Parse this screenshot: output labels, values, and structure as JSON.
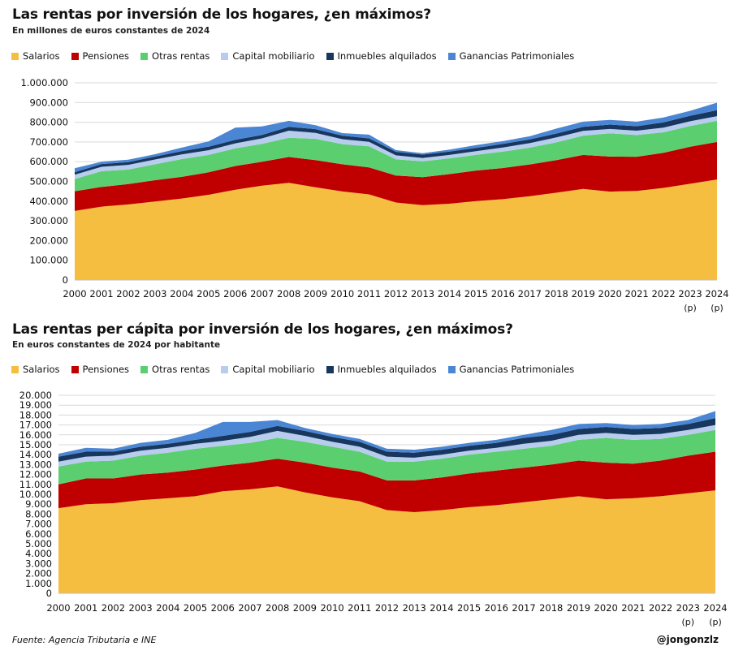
{
  "colors": {
    "Salarios": "#F5BE41",
    "Pensiones": "#C00000",
    "Otras rentas": "#5BCF70",
    "Capital mobiliario": "#B8CCEE",
    "Inmuebles alquilados": "#17375E",
    "Ganancias Patrimoniales": "#4A86D4"
  },
  "footer": {
    "source": "Fuente: Agencia Tributaria e INE",
    "handle": "@jongonzlz"
  },
  "chart_data": [
    {
      "type": "area",
      "stacked": true,
      "title": "Las rentas por inversión de los hogares, ¿en máximos?",
      "subtitle": "En millones  de euros constantes de 2024",
      "x": [
        "2000",
        "2001",
        "2002",
        "2003",
        "2004",
        "2005",
        "2006",
        "2007",
        "2008",
        "2009",
        "2010",
        "2011",
        "2012",
        "2013",
        "2014",
        "2015",
        "2016",
        "2017",
        "2018",
        "2019",
        "2020",
        "2021",
        "2022",
        "2023",
        "2024"
      ],
      "x_notes": [
        "",
        "",
        "",
        "",
        "",
        "",
        "",
        "",
        "",
        "",
        "",
        "",
        "",
        "",
        "",
        "",
        "",
        "",
        "",
        "",
        "",
        "",
        "",
        "(p)",
        "(p)"
      ],
      "ylim": [
        0,
        1000000
      ],
      "yticks": [
        "0",
        "100.000",
        "200.000",
        "300.000",
        "400.000",
        "500.000",
        "600.000",
        "700.000",
        "800.000",
        "900.000",
        "1.000.000"
      ],
      "grid": true,
      "legend": "top",
      "series": [
        {
          "name": "Salarios",
          "values": [
            350000,
            372000,
            383000,
            398000,
            413000,
            432000,
            458000,
            478000,
            493000,
            470000,
            449000,
            434000,
            393000,
            380000,
            387000,
            400000,
            410000,
            425000,
            443000,
            462000,
            448000,
            452000,
            467000,
            488000,
            510000
          ]
        },
        {
          "name": "Pensiones",
          "values": [
            100000,
            100000,
            104000,
            108000,
            110000,
            114000,
            120000,
            122000,
            131000,
            138000,
            138000,
            137000,
            137000,
            142000,
            150000,
            155000,
            158000,
            161000,
            165000,
            172000,
            178000,
            173000,
            178000,
            188000,
            190000
          ]
        },
        {
          "name": "Otras rentas",
          "values": [
            62000,
            80000,
            73000,
            81000,
            90000,
            88000,
            90000,
            90000,
            97000,
            108000,
            102000,
            107000,
            82000,
            80000,
            80000,
            80000,
            83000,
            85000,
            90000,
            98000,
            118000,
            110000,
            104000,
            105000,
            107000
          ]
        },
        {
          "name": "Capital mobiliario",
          "values": [
            22000,
            22000,
            24000,
            24000,
            24000,
            24000,
            25000,
            28000,
            36000,
            30000,
            25000,
            23000,
            20000,
            17000,
            17000,
            18000,
            21000,
            23000,
            25000,
            24000,
            22000,
            22000,
            24000,
            24000,
            24000
          ]
        },
        {
          "name": "Inmuebles alquilados",
          "values": [
            13000,
            14000,
            14000,
            15000,
            16000,
            18000,
            18000,
            18000,
            20000,
            19000,
            18000,
            17000,
            18000,
            17000,
            17000,
            17000,
            18000,
            19000,
            20000,
            21000,
            22000,
            23000,
            26000,
            28000,
            30000
          ]
        },
        {
          "name": "Ganancias Patrimoniales",
          "values": [
            20000,
            12000,
            12000,
            12000,
            18000,
            27000,
            62000,
            43000,
            30000,
            20000,
            13000,
            19000,
            9000,
            7000,
            10000,
            14000,
            14000,
            16000,
            25000,
            26000,
            24000,
            23000,
            25000,
            25000,
            38000
          ]
        }
      ]
    },
    {
      "type": "area",
      "stacked": true,
      "title": "Las rentas per cápita por inversión de los hogares, ¿en máximos?",
      "subtitle": "En euros  constantes de 2024 por habitante",
      "x": [
        "2000",
        "2001",
        "2002",
        "2003",
        "2004",
        "2005",
        "2006",
        "2007",
        "2008",
        "2009",
        "2010",
        "2011",
        "2012",
        "2013",
        "2014",
        "2015",
        "2016",
        "2017",
        "2018",
        "2019",
        "2020",
        "2021",
        "2022",
        "2023",
        "2024"
      ],
      "x_notes": [
        "",
        "",
        "",
        "",
        "",
        "",
        "",
        "",
        "",
        "",
        "",
        "",
        "",
        "",
        "",
        "",
        "",
        "",
        "",
        "",
        "",
        "",
        "",
        "(p)",
        "(p)"
      ],
      "ylim": [
        0,
        20000
      ],
      "yticks": [
        "0",
        "1.000",
        "2.000",
        "3.000",
        "4.000",
        "5.000",
        "6.000",
        "7.000",
        "8.000",
        "9.000",
        "10.000",
        "11.000",
        "12.000",
        "13.000",
        "14.000",
        "15.000",
        "16.000",
        "17.000",
        "18.000",
        "19.000",
        "20.000"
      ],
      "grid": true,
      "legend": "top",
      "series": [
        {
          "name": "Salarios",
          "values": [
            8600,
            9000,
            9100,
            9400,
            9600,
            9800,
            10300,
            10500,
            10800,
            10200,
            9700,
            9300,
            8400,
            8200,
            8400,
            8700,
            8900,
            9200,
            9500,
            9800,
            9500,
            9600,
            9800,
            10100,
            10400
          ]
        },
        {
          "name": "Pensiones",
          "values": [
            2400,
            2600,
            2500,
            2600,
            2600,
            2700,
            2600,
            2700,
            2800,
            3000,
            3000,
            3000,
            3000,
            3200,
            3300,
            3400,
            3500,
            3500,
            3500,
            3600,
            3700,
            3500,
            3600,
            3800,
            3900
          ]
        },
        {
          "name": "Otras rentas",
          "values": [
            1800,
            1700,
            1800,
            1900,
            2000,
            2100,
            2000,
            2000,
            2100,
            2100,
            2100,
            2000,
            1900,
            1900,
            1900,
            1900,
            1900,
            1900,
            1900,
            2100,
            2500,
            2400,
            2200,
            2100,
            2200
          ]
        },
        {
          "name": "Capital mobiliario",
          "values": [
            500,
            500,
            500,
            500,
            500,
            500,
            500,
            600,
            700,
            600,
            500,
            500,
            500,
            400,
            400,
            400,
            400,
            500,
            500,
            500,
            500,
            500,
            500,
            500,
            500
          ]
        },
        {
          "name": "Inmuebles alquilados",
          "values": [
            500,
            500,
            400,
            400,
            400,
            400,
            500,
            500,
            500,
            500,
            500,
            500,
            500,
            500,
            500,
            500,
            500,
            600,
            600,
            600,
            600,
            600,
            600,
            600,
            700
          ]
        },
        {
          "name": "Ganancias Patrimoniales",
          "values": [
            300,
            400,
            300,
            400,
            400,
            700,
            1400,
            1000,
            600,
            300,
            300,
            300,
            300,
            300,
            300,
            300,
            300,
            300,
            500,
            500,
            400,
            400,
            400,
            400,
            700
          ]
        }
      ]
    }
  ]
}
